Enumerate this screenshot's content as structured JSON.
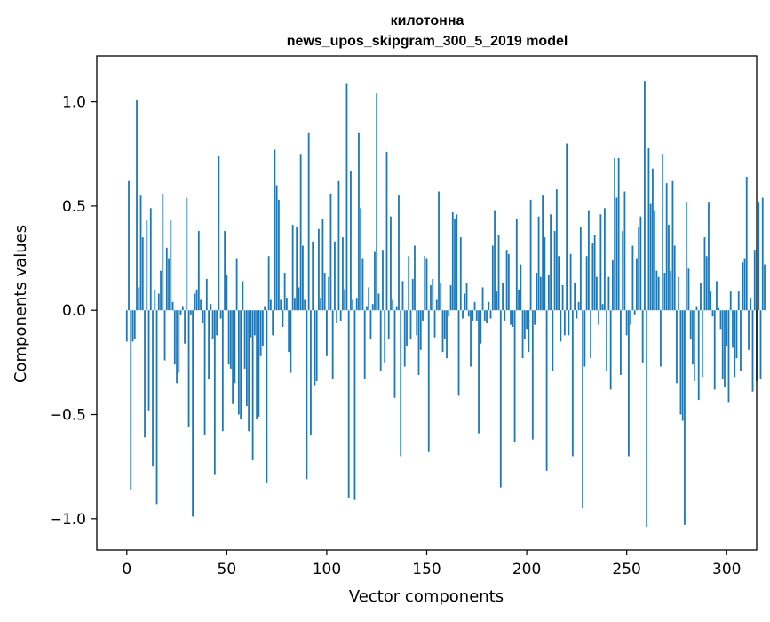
{
  "chart_data": {
    "type": "bar",
    "title": "килотонна",
    "subtitle": "news_upos_skipgram_300_5_2019 model",
    "xlabel": "Vector components",
    "ylabel": "Components values",
    "xlim": [
      -15,
      315
    ],
    "ylim": [
      -1.15,
      1.22
    ],
    "x_ticks": [
      0,
      50,
      100,
      150,
      200,
      250,
      300
    ],
    "y_ticks": [
      -1.0,
      -0.5,
      0.0,
      0.5,
      1.0
    ],
    "y_tick_labels": [
      "−1.0",
      "−0.5",
      "0.0",
      "0.5",
      "1.0"
    ],
    "grid": false,
    "bar_color": "#1f77b4",
    "values": [
      -0.15,
      0.62,
      -0.86,
      -0.15,
      -0.14,
      1.01,
      0.11,
      0.55,
      0.35,
      -0.61,
      0.43,
      -0.48,
      0.49,
      -0.75,
      0.1,
      -0.93,
      0.08,
      0.19,
      0.56,
      -0.24,
      0.3,
      0.25,
      0.43,
      0.04,
      -0.26,
      -0.35,
      -0.3,
      -0.02,
      0.02,
      -0.16,
      0.54,
      -0.56,
      -0.02,
      -0.99,
      0.08,
      0.1,
      0.38,
      0.05,
      -0.06,
      -0.6,
      0.15,
      -0.33,
      0.03,
      -0.14,
      -0.79,
      -0.12,
      0.74,
      -0.04,
      -0.58,
      0.38,
      0.17,
      -0.26,
      -0.28,
      -0.45,
      -0.35,
      0.25,
      -0.5,
      -0.52,
      0.14,
      -0.28,
      -0.46,
      -0.58,
      -0.13,
      -0.72,
      -0.12,
      -0.52,
      -0.51,
      -0.22,
      -0.17,
      0.02,
      -0.83,
      0.26,
      0.05,
      -0.12,
      0.77,
      0.6,
      0.53,
      0.05,
      -0.08,
      0.18,
      0.06,
      -0.2,
      -0.3,
      0.41,
      0.06,
      0.4,
      0.11,
      0.75,
      0.31,
      0.05,
      -0.81,
      0.85,
      -0.6,
      0.33,
      -0.36,
      -0.34,
      0.39,
      0.06,
      0.44,
      0.18,
      -0.22,
      0.16,
      0.56,
      -0.33,
      0.33,
      -0.06,
      0.62,
      -0.05,
      0.35,
      0.1,
      1.09,
      -0.9,
      0.67,
      0.05,
      -0.91,
      0.06,
      0.85,
      0.49,
      0.25,
      -0.33,
      0.02,
      0.11,
      -0.14,
      0.03,
      0.28,
      1.04,
      0.08,
      -0.29,
      0.29,
      -0.25,
      0.76,
      -0.14,
      0.45,
      0.05,
      -0.42,
      0.02,
      0.55,
      -0.7,
      0.14,
      -0.27,
      -0.17,
      0.26,
      -0.14,
      0.15,
      0.31,
      -0.12,
      -0.31,
      -0.19,
      -0.05,
      0.26,
      0.25,
      -0.68,
      0.12,
      0.15,
      -0.13,
      0.05,
      0.57,
      0.13,
      -0.2,
      -0.14,
      -0.23,
      -0.03,
      0.12,
      0.47,
      0.44,
      0.46,
      -0.41,
      0.35,
      -0.04,
      0.08,
      0.13,
      -0.03,
      -0.27,
      -0.05,
      0.04,
      -0.05,
      -0.59,
      -0.16,
      0.11,
      -0.05,
      -0.06,
      0.04,
      -0.04,
      0.31,
      0.48,
      0.09,
      0.36,
      -0.85,
      0.13,
      -0.05,
      0.29,
      0.27,
      -0.07,
      -0.08,
      -0.63,
      0.44,
      0.1,
      0.22,
      -0.23,
      -0.14,
      -0.09,
      -0.2,
      0.53,
      -0.62,
      -0.07,
      0.18,
      0.45,
      0.16,
      0.55,
      0.35,
      -0.77,
      0.17,
      0.46,
      -0.29,
      0.38,
      0.58,
      0.26,
      -0.15,
      0.12,
      -0.12,
      0.8,
      -0.12,
      0.27,
      -0.7,
      0.13,
      -0.04,
      0.04,
      0.4,
      -0.95,
      -0.27,
      0.26,
      0.48,
      -0.23,
      0.32,
      0.36,
      0.16,
      -0.07,
      0.46,
      0.03,
      0.49,
      -0.29,
      0.16,
      -0.38,
      0.24,
      0.73,
      0.54,
      0.73,
      -0.31,
      0.38,
      0.57,
      -0.12,
      -0.7,
      -0.07,
      0.31,
      -0.02,
      0.25,
      0.4,
      0.45,
      -0.25,
      1.1,
      -1.04,
      0.78,
      0.51,
      0.68,
      0.48,
      0.19,
      0.16,
      -0.27,
      0.75,
      0.18,
      0.61,
      0.41,
      0.19,
      0.62,
      0.31,
      -0.35,
      0.16,
      -0.5,
      -0.53,
      -1.03,
      0.52,
      0.2,
      -0.14,
      -0.26,
      -0.34,
      0.02,
      -0.43,
      0.13,
      -0.32,
      0.35,
      0.26,
      0.52,
      0.09,
      -0.03,
      -0.38,
      0.14,
      0.01,
      -0.09,
      -0.33,
      -0.37,
      -0.17,
      -0.44,
      0.09,
      -0.18,
      -0.32,
      -0.23,
      0.09,
      -0.29,
      0.23,
      0.25,
      0.64,
      -0.19,
      0.06,
      -0.39,
      0.29,
      -0.34,
      0.52,
      -0.33,
      0.54,
      0.22
    ]
  }
}
